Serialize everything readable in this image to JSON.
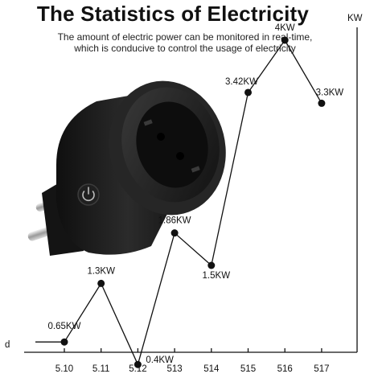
{
  "header": {
    "title": "The Statistics of Electricity",
    "subtitle_line1": "The amount of electric power can be monitored in real-time,",
    "subtitle_line2": "which is conducive to control the usage of electricity"
  },
  "product": {
    "name": "smart-plug",
    "icon": "power-button-icon",
    "color": "#1c1c1c"
  },
  "chart_data": {
    "type": "line",
    "xlabel": "d",
    "ylabel": "KW",
    "categories": [
      "5.10",
      "5.11",
      "5.12",
      "513",
      "514",
      "515",
      "516",
      "517"
    ],
    "values": [
      0.65,
      1.3,
      0.4,
      1.86,
      1.5,
      3.42,
      4.0,
      3.3
    ],
    "data_labels": [
      "0.65KW",
      "1.3KW",
      "0.4KW",
      "1.86KW",
      "1.5KW",
      "3.42KW",
      "4KW",
      "3.3KW"
    ],
    "ylim": [
      0,
      5.5
    ],
    "grid": false,
    "colors": {
      "line": "#111111",
      "axis": "#111111",
      "point": "#111111"
    }
  }
}
